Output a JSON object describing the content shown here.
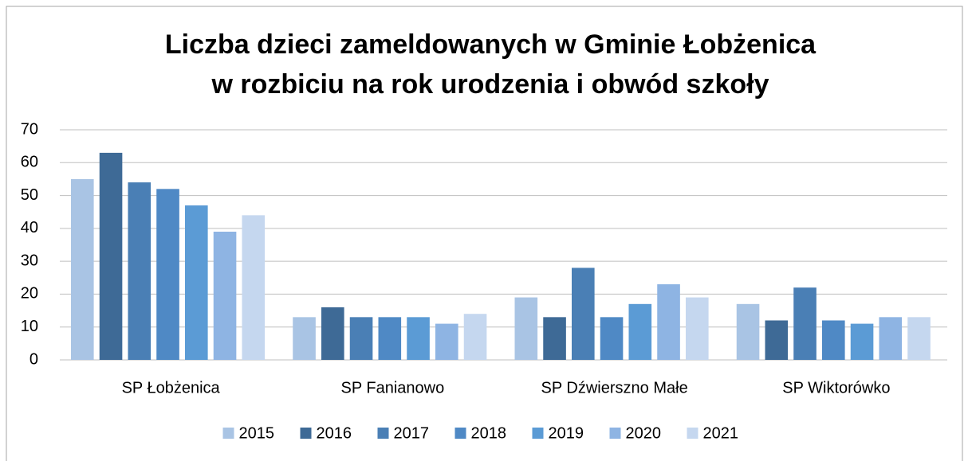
{
  "chart_data": {
    "type": "bar",
    "title": [
      "Liczba dzieci zameldowanych w Gminie Łobżenica",
      "w rozbiciu na rok urodzenia i obwód szkoły"
    ],
    "categories": [
      "SP Łobżenica",
      "SP Fanianowo",
      "SP Dźwierszno Małe",
      "SP Wiktorówko"
    ],
    "series": [
      {
        "name": "2015",
        "color": "#a9c4e4",
        "values": [
          55,
          13,
          19,
          17
        ]
      },
      {
        "name": "2016",
        "color": "#3e6a96",
        "values": [
          63,
          16,
          13,
          12
        ]
      },
      {
        "name": "2017",
        "color": "#4a7fb5",
        "values": [
          54,
          13,
          28,
          22
        ]
      },
      {
        "name": "2018",
        "color": "#4f89c5",
        "values": [
          52,
          13,
          13,
          12
        ]
      },
      {
        "name": "2019",
        "color": "#5b9bd5",
        "values": [
          47,
          13,
          17,
          11
        ]
      },
      {
        "name": "2020",
        "color": "#8eb4e3",
        "values": [
          39,
          11,
          23,
          13
        ]
      },
      {
        "name": "2021",
        "color": "#c5d7ef",
        "values": [
          44,
          14,
          19,
          13
        ]
      }
    ],
    "ylim": [
      0,
      70
    ],
    "yticks": [
      0,
      10,
      20,
      30,
      40,
      50,
      60,
      70
    ],
    "grid": true,
    "legend": "bottom"
  }
}
